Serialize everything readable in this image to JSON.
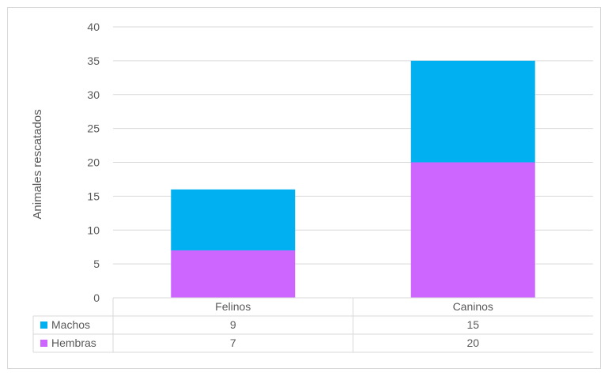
{
  "chart_data": {
    "type": "bar",
    "stacked": true,
    "categories": [
      "Felinos",
      "Caninos"
    ],
    "series": [
      {
        "name": "Hembras",
        "values": [
          7,
          20
        ],
        "color": "#cc66ff"
      },
      {
        "name": "Machos",
        "values": [
          9,
          15
        ],
        "color": "#00b0f0"
      }
    ],
    "ylabel": "Animales rescatados",
    "xlabel": "",
    "ylim": [
      0,
      40
    ],
    "yticks": [
      0,
      5,
      10,
      15,
      20,
      25,
      30,
      35,
      40
    ],
    "grid": true,
    "data_table": {
      "rows": [
        {
          "label": "Machos",
          "values": [
            "9",
            "15"
          ],
          "color": "#00b0f0"
        },
        {
          "label": "Hembras",
          "values": [
            "7",
            "20"
          ],
          "color": "#cc66ff"
        }
      ]
    }
  }
}
